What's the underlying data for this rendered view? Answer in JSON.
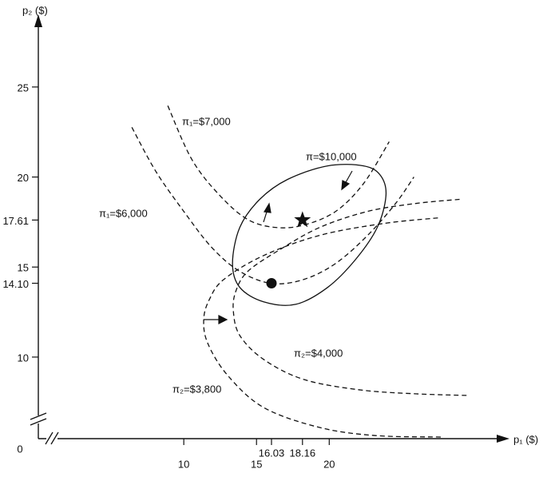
{
  "chart_data": {
    "type": "line",
    "x_label": "p₁ ($)",
    "y_label": "p₂ ($)",
    "origin_label": "0",
    "xlim": [
      0,
      32.5
    ],
    "ylim": [
      5.47,
      28.5
    ],
    "xticks": [
      10,
      15,
      16.03,
      18.16,
      20
    ],
    "yticks": [
      10,
      {
        "value": 14.1,
        "label": "14.10"
      },
      15,
      17.61,
      20,
      25
    ],
    "color": "#111111",
    "series": [
      {
        "name": "π₁=$7,000",
        "dashed": true,
        "closed": false,
        "x": [
          8.9,
          10.55,
          12.47,
          14.4,
          16.3,
          18.24,
          20.44,
          22.36,
          24.12
        ],
        "values": [
          23.96,
          20.98,
          18.98,
          17.64,
          17.2,
          17.33,
          18.09,
          19.64,
          21.96
        ]
      },
      {
        "name": "π₁=$6,000",
        "dashed": true,
        "closed": false,
        "x": [
          6.43,
          8.08,
          10,
          11.92,
          13.85,
          16.04,
          18.24,
          20.44,
          22.64,
          24.56,
          25.82
        ],
        "values": [
          22.76,
          20.31,
          18.09,
          16.09,
          14.76,
          14.09,
          14.31,
          15.2,
          16.76,
          18.53,
          20.0
        ]
      },
      {
        "name": "π₂=$4,000",
        "dashed": true,
        "closed": false,
        "x": [
          28.96,
          25.93,
          22.64,
          19.34,
          16.59,
          14.4,
          13.57,
          13.41,
          13.85,
          15.49,
          18.24,
          22.09,
          25.93,
          29.5
        ],
        "values": [
          18.76,
          18.53,
          18.09,
          17.2,
          15.96,
          14.76,
          13.64,
          12.53,
          11.2,
          9.87,
          8.76,
          8.18,
          7.96,
          7.87
        ]
      },
      {
        "name": "π₂=$3,800",
        "dashed": true,
        "closed": false,
        "x": [
          27.47,
          23.74,
          19.34,
          15.49,
          12.75,
          11.76,
          11.37,
          11.65,
          13.02,
          15.49,
          19.34,
          23.19,
          27.69
        ],
        "values": [
          17.73,
          17.42,
          16.76,
          15.64,
          14.31,
          13.2,
          12.09,
          10.76,
          8.98,
          7.2,
          6.09,
          5.64,
          5.56
        ]
      },
      {
        "name": "π=$10,000",
        "dashed": false,
        "closed": true,
        "x": [
          22.36,
          23.52,
          23.9,
          23.3,
          21.81,
          19.89,
          17.69,
          15.49,
          13.85,
          13.35,
          13.85,
          15.22,
          17.14,
          19.89
        ],
        "values": [
          20.62,
          20.09,
          18.98,
          17.2,
          15.42,
          13.87,
          12.93,
          13.07,
          13.87,
          15.2,
          17.2,
          18.76,
          19.87,
          20.62
        ]
      }
    ],
    "points": [
      {
        "x": 18.16,
        "y": 17.61,
        "marker": "star"
      },
      {
        "x": 16.03,
        "y": 14.1,
        "marker": "dot"
      }
    ]
  }
}
